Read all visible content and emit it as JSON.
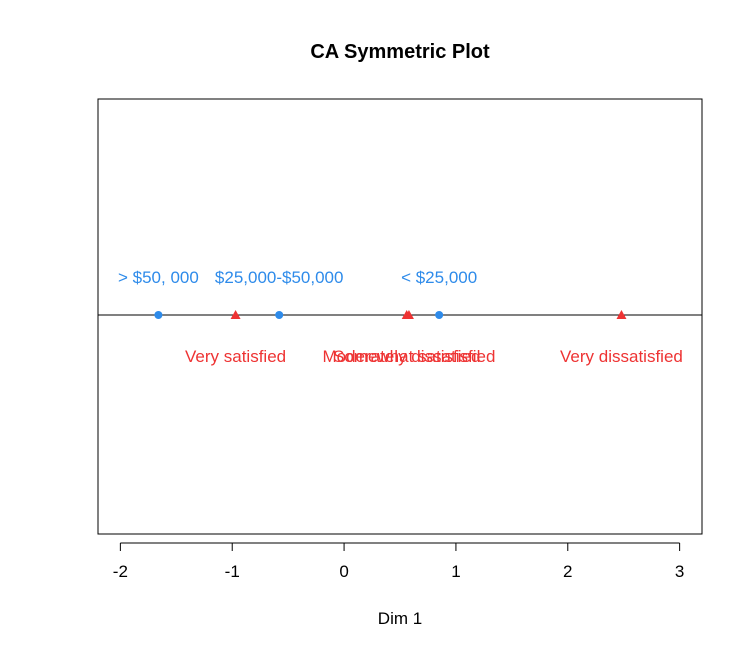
{
  "chart_data": {
    "type": "scatter",
    "title": "CA Symmetric Plot",
    "xlabel": "Dim 1",
    "ylabel": "",
    "xlim": [
      -2.2,
      3.2
    ],
    "xticks": [
      -2,
      -1,
      0,
      1,
      2,
      3
    ],
    "tick_labels": [
      "-2",
      "-1",
      "0",
      "1",
      "2",
      "3"
    ],
    "reference_line_y": 0,
    "grid": false,
    "colors": {
      "rows": "#2E8BEA",
      "columns": "#EE3333"
    },
    "series": [
      {
        "marker": "circle",
        "color": "#2E8BEA",
        "label_position": "above",
        "points": [
          {
            "x": -1.66,
            "y": 0,
            "label": "> $50, 000"
          },
          {
            "x": -0.58,
            "y": 0,
            "label": "$25,000-$50,000"
          },
          {
            "x": 0.85,
            "y": 0,
            "label": "< $25,000"
          }
        ]
      },
      {
        "marker": "triangle",
        "color": "#EE3333",
        "label_position": "below",
        "points": [
          {
            "x": -0.97,
            "y": 0,
            "label": "Very satisfied"
          },
          {
            "x": 0.56,
            "y": 0,
            "label": "Somewhat satisfied"
          },
          {
            "x": 0.58,
            "y": 0,
            "label": "Moderately dissatisfied"
          },
          {
            "x": 2.48,
            "y": 0,
            "label": "Very dissatisfied"
          }
        ]
      }
    ]
  }
}
